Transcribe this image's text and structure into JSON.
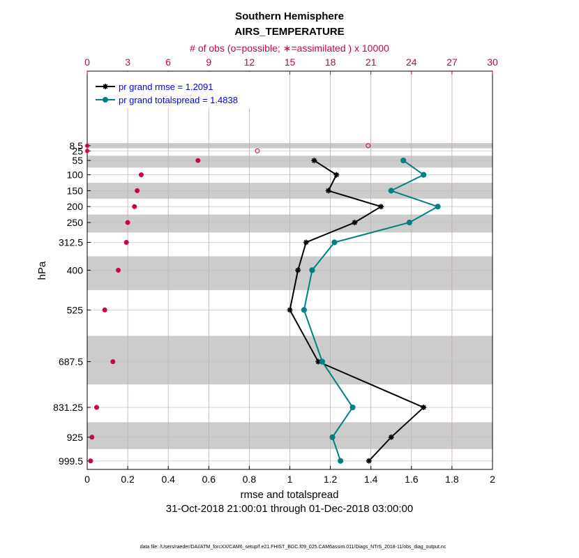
{
  "title_line1": "Southern Hemisphere",
  "title_line2": "AIRS_TEMPERATURE",
  "obs_axis_label": "# of obs (o=possible; ∗=assimilated ) x 10000",
  "date_range": "31-Oct-2018 21:00:01 through 01-Dec-2018 03:00:00",
  "footer": "data file: /Users/raeder/DAI/ATM_forcXX/CAM6_setup/f.e21.FHIST_BGC.f09_025.CAM6assim.011/Diags_NTrS_2018-11/obs_diag_output.nc",
  "colors": {
    "rmse": "#000000",
    "spread": "#008080",
    "obs": "#cc0044",
    "legend_text": "#0000ee",
    "band": "#cccccc"
  },
  "chart_data": {
    "type": "line",
    "xlabel": "rmse and totalspread",
    "ylabel": "hPa",
    "xlim": [
      0,
      2
    ],
    "x_ticks": [
      "0",
      "0.2",
      "0.4",
      "0.6",
      "0.8",
      "1",
      "1.2",
      "1.4",
      "1.6",
      "1.8",
      "2"
    ],
    "obs_xlim": [
      0,
      30
    ],
    "obs_ticks": [
      "0",
      "3",
      "6",
      "9",
      "12",
      "15",
      "18",
      "21",
      "24",
      "27",
      "30"
    ],
    "levels": [
      8.5,
      25,
      55,
      100,
      150,
      200,
      250,
      312.5,
      400,
      525,
      687.5,
      831.25,
      925,
      999.5
    ],
    "level_labels": [
      "8.5",
      "25",
      "55",
      "100",
      "150",
      "200",
      "250",
      "312.5",
      "400",
      "525",
      "687.5",
      "831.25",
      "925",
      "999.5"
    ],
    "series": [
      {
        "name": "pr grand rmse",
        "legend": "pr grand rmse = 1.2091",
        "marker": "star",
        "values": [
          null,
          null,
          1.12,
          1.23,
          1.19,
          1.45,
          1.32,
          1.08,
          1.04,
          1.0,
          1.14,
          1.66,
          1.5,
          1.39
        ]
      },
      {
        "name": "pr grand totalspread",
        "legend": "pr grand totalspread = 1.4838",
        "marker": "circle",
        "values": [
          null,
          null,
          1.56,
          1.66,
          1.5,
          1.73,
          1.59,
          1.22,
          1.11,
          1.07,
          1.16,
          1.31,
          1.21,
          1.25
        ]
      }
    ],
    "obs_possible": [
      20.8,
      12.6,
      8.2,
      4.0,
      3.7,
      3.5,
      3.0,
      2.9,
      2.3,
      1.3,
      1.9,
      0.7,
      0.35,
      0.25
    ],
    "obs_assimilated": [
      0.0,
      0.0,
      8.2,
      4.0,
      3.7,
      3.5,
      3.0,
      2.9,
      2.3,
      1.3,
      1.9,
      0.7,
      0.35,
      0.25
    ]
  }
}
